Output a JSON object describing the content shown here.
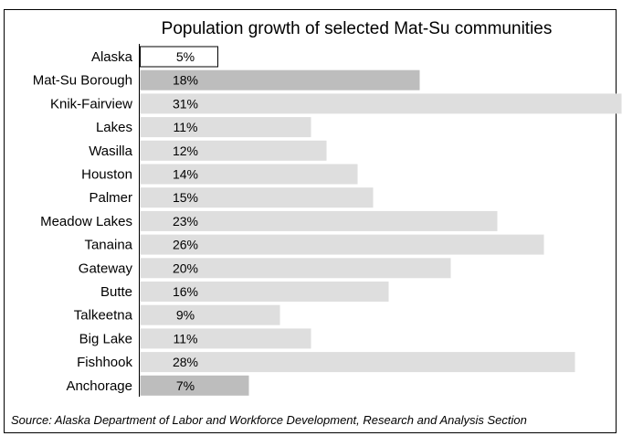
{
  "chart_data": {
    "type": "bar",
    "orientation": "horizontal",
    "title": "Population growth of selected Mat-Su communities",
    "source": "Source: Alaska Department of Labor and Workforce Development, Research and Analysis Section",
    "categories": [
      "Alaska",
      "Mat-Su Borough",
      "Knik-Fairview",
      "Lakes",
      "Wasilla",
      "Houston",
      "Palmer",
      "Meadow Lakes",
      "Tanaina",
      "Gateway",
      "Butte",
      "Talkeetna",
      "Big Lake",
      "Fishhook",
      "Anchorage"
    ],
    "values": [
      5,
      18,
      31,
      11,
      12,
      14,
      15,
      23,
      26,
      20,
      16,
      9,
      11,
      28,
      7
    ],
    "value_labels": [
      "5%",
      "18%",
      "31%",
      "11%",
      "12%",
      "14%",
      "15%",
      "23%",
      "26%",
      "20%",
      "16%",
      "9%",
      "11%",
      "28%",
      "7%"
    ],
    "xlim": [
      0,
      32
    ],
    "grid": false,
    "colors": {
      "alaska": "#ffffff",
      "borough": "#bdbdbd",
      "anchorage": "#bdbdbd",
      "community": "#dedede",
      "alaska_outline": "#000000"
    }
  }
}
